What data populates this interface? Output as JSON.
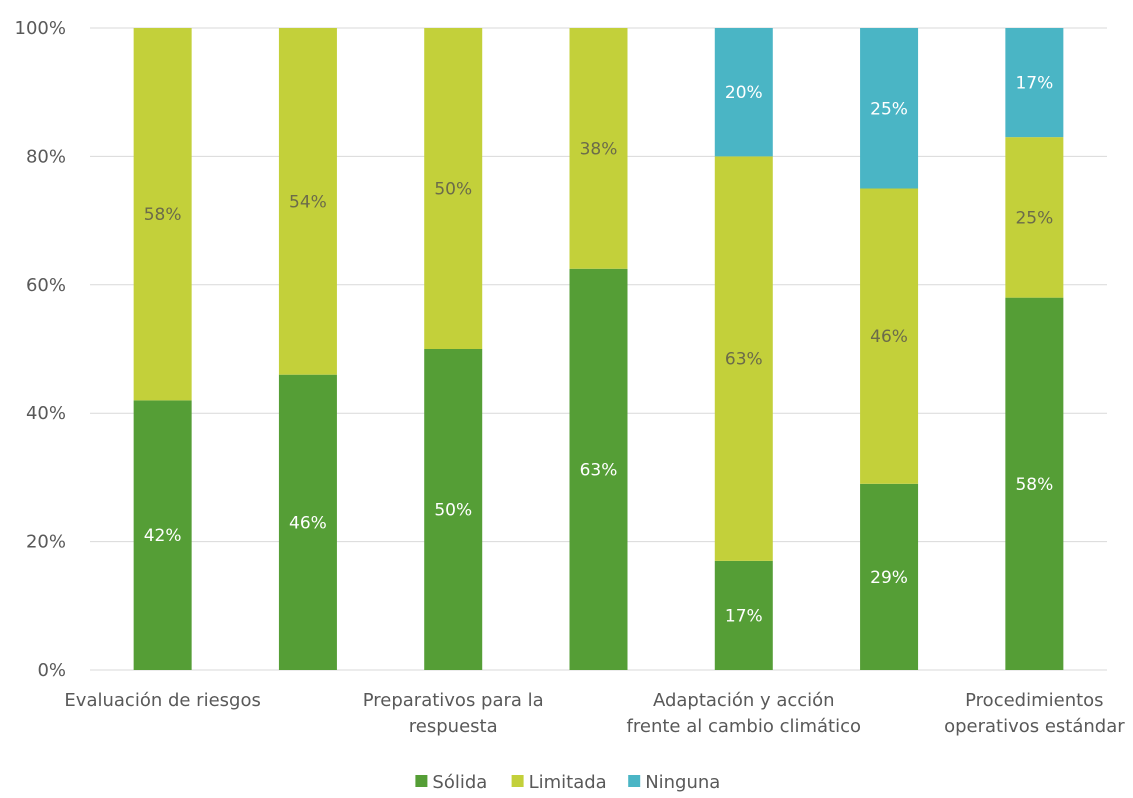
{
  "chart_data": {
    "type": "bar",
    "stacked": true,
    "title": "",
    "xlabel": "",
    "ylabel": "",
    "ylim": [
      0,
      100
    ],
    "y_ticks": [
      "0%",
      "20%",
      "40%",
      "60%",
      "80%",
      "100%"
    ],
    "grid": true,
    "legend_position": "bottom",
    "categories": [
      "Evaluación de riesgos",
      "",
      "Preparativos para la respuesta",
      "",
      "Adaptación y acción frente al cambio climático",
      "",
      "Procedimientos operativos estándar"
    ],
    "category_label_lines": [
      [
        "Evaluación de riesgos"
      ],
      [],
      [
        "Preparativos para la",
        "respuesta"
      ],
      [],
      [
        "Adaptación y acción",
        "frente al cambio climático"
      ],
      [],
      [
        "Procedimientos",
        "operativos estándar"
      ]
    ],
    "series": [
      {
        "name": "Sólida",
        "color": "#559e36",
        "label_color": "#ffffff",
        "values": [
          42,
          46,
          50,
          62.5,
          17,
          29,
          58
        ],
        "labels": [
          "42%",
          "46%",
          "50%",
          "63%",
          "17%",
          "29%",
          "58%"
        ]
      },
      {
        "name": "Limitada",
        "color": "#c3d03a",
        "label_color": "#6b6b4a",
        "values": [
          58,
          54,
          50,
          37.5,
          63,
          46,
          25
        ],
        "labels": [
          "58%",
          "54%",
          "50%",
          "38%",
          "63%",
          "46%",
          "25%"
        ]
      },
      {
        "name": "Ninguna",
        "color": "#4ab5c5",
        "label_color": "#ffffff",
        "values": [
          0,
          0,
          0,
          0,
          20,
          25,
          17
        ],
        "labels": [
          "",
          "",
          "",
          "",
          "20%",
          "25%",
          "17%"
        ]
      }
    ]
  }
}
